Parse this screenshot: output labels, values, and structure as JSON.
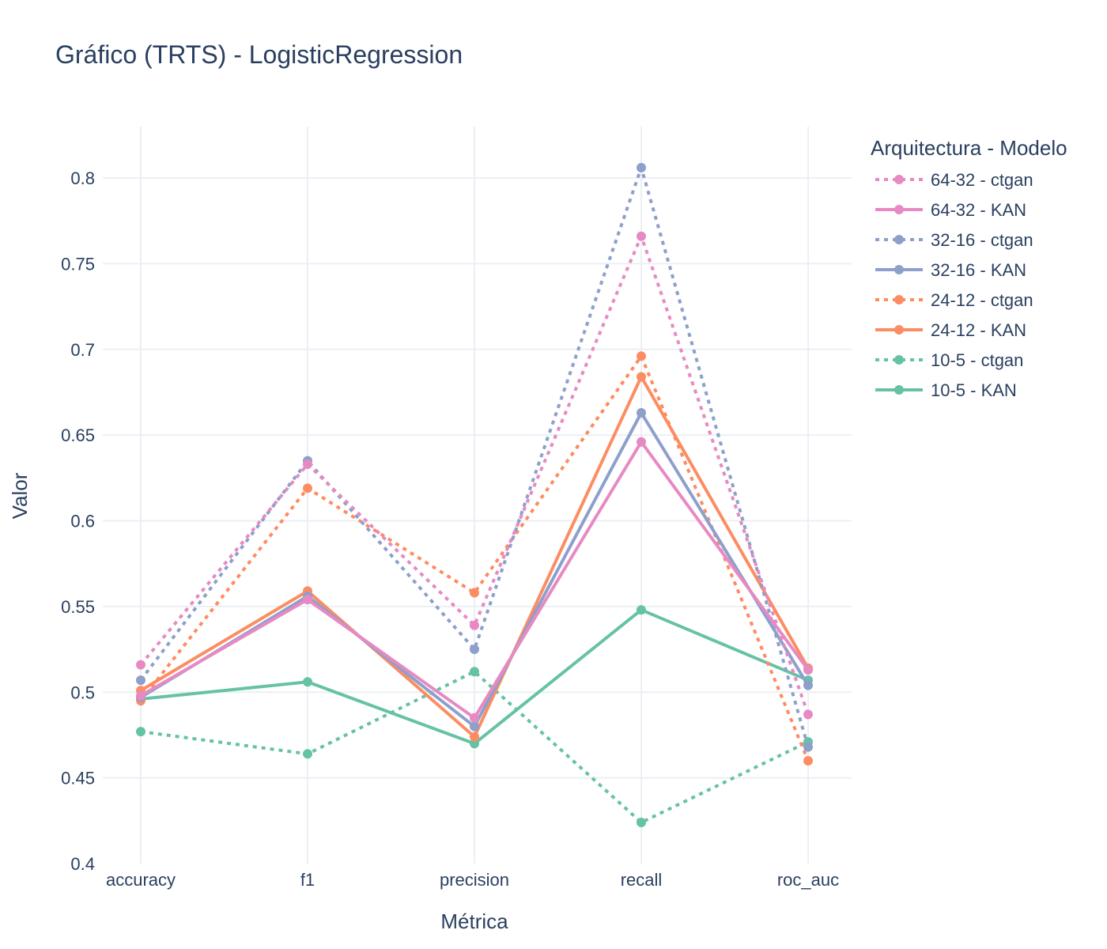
{
  "chart_data": {
    "type": "line",
    "title": "Gráfico (TRTS) - LogisticRegression",
    "xlabel": "Métrica",
    "ylabel": "Valor",
    "categories": [
      "accuracy",
      "f1",
      "precision",
      "recall",
      "roc_auc"
    ],
    "ylim": [
      0.4,
      0.83
    ],
    "yticks": [
      0.4,
      0.45,
      0.5,
      0.55,
      0.6,
      0.65,
      0.7,
      0.75,
      0.8
    ],
    "ytick_labels": [
      "0.4",
      "0.45",
      "0.5",
      "0.55",
      "0.6",
      "0.65",
      "0.7",
      "0.75",
      "0.8"
    ],
    "grid": true,
    "legend": {
      "title": "Arquitectura - Modelo",
      "placement": "right"
    },
    "series": [
      {
        "name": "64-32 - ctgan",
        "color": "#e78ac3",
        "dash": "dotted",
        "values": [
          0.516,
          0.633,
          0.539,
          0.766,
          0.487
        ]
      },
      {
        "name": "64-32 - KAN",
        "color": "#e78ac3",
        "dash": "solid",
        "values": [
          0.498,
          0.554,
          0.485,
          0.646,
          0.513
        ]
      },
      {
        "name": "32-16 - ctgan",
        "color": "#8da0cb",
        "dash": "dotted",
        "values": [
          0.507,
          0.635,
          0.525,
          0.806,
          0.468
        ]
      },
      {
        "name": "32-16 - KAN",
        "color": "#8da0cb",
        "dash": "solid",
        "values": [
          0.497,
          0.556,
          0.48,
          0.663,
          0.504
        ]
      },
      {
        "name": "24-12 - ctgan",
        "color": "#fc8d62",
        "dash": "dotted",
        "values": [
          0.495,
          0.619,
          0.558,
          0.696,
          0.46
        ]
      },
      {
        "name": "24-12 - KAN",
        "color": "#fc8d62",
        "dash": "solid",
        "values": [
          0.501,
          0.559,
          0.474,
          0.684,
          0.514
        ]
      },
      {
        "name": "10-5 - ctgan",
        "color": "#66c2a5",
        "dash": "dotted",
        "values": [
          0.477,
          0.464,
          0.512,
          0.424,
          0.471
        ]
      },
      {
        "name": "10-5 - KAN",
        "color": "#66c2a5",
        "dash": "solid",
        "values": [
          0.496,
          0.506,
          0.47,
          0.548,
          0.507
        ]
      }
    ]
  }
}
